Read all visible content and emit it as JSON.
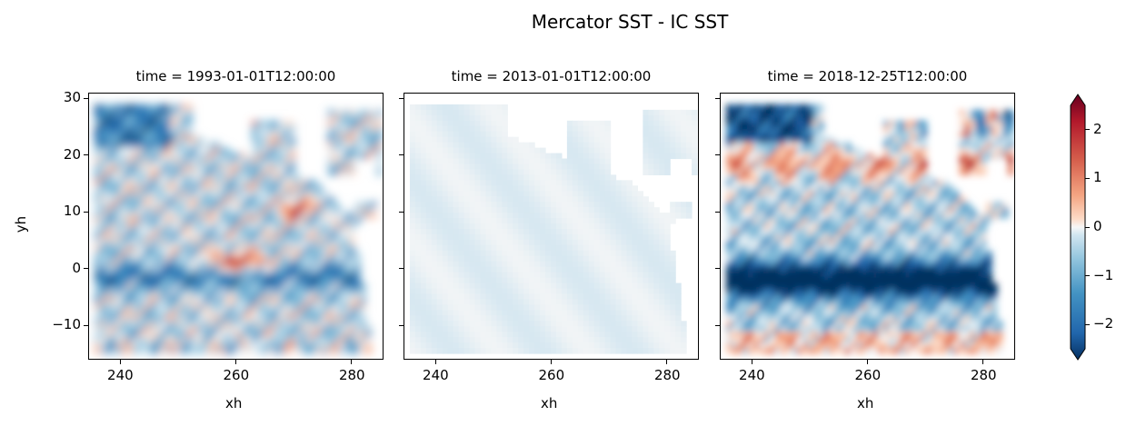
{
  "title": "Mercator SST - IC SST",
  "colors": {
    "land": "#ffffff",
    "cold": "#053061",
    "warm": "#67001f",
    "zero": "#f7f7f7",
    "axes": "#000000"
  },
  "chart_data": {
    "type": "heatmap",
    "title": "Mercator SST - IC SST",
    "xlabel": "xh",
    "ylabel": "yh",
    "xlim": [
      234.5,
      285.5
    ],
    "ylim": [
      -16,
      31
    ],
    "xticks": [
      "240",
      "260",
      "280"
    ],
    "yticks": [
      "30",
      "20",
      "10",
      "0",
      "−10"
    ],
    "colormap": "RdBu_r",
    "colorbar": {
      "range": [
        -2.5,
        2.5
      ],
      "ticks": [
        "2",
        "1",
        "0",
        "−1",
        "−2"
      ],
      "extend": "both"
    },
    "panels": [
      {
        "title": "time = 1993-01-01T12:00:00",
        "data_summary": {
          "min": -2.5,
          "max": 2.5,
          "features": "mixed warm/cold eddies; warm anomaly near x=260, y=1; cold band near y=0"
        }
      },
      {
        "title": "time = 2013-01-01T12:00:00",
        "data_summary": {
          "min": -0.2,
          "max": 0.1,
          "features": "near-zero difference everywhere"
        }
      },
      {
        "title": "time = 2018-12-25T12:00:00",
        "data_summary": {
          "min": -2.5,
          "max": 2.5,
          "features": "strong cold band along equator (y=-5 to 2); warm anomalies near y=20-25"
        }
      }
    ]
  }
}
